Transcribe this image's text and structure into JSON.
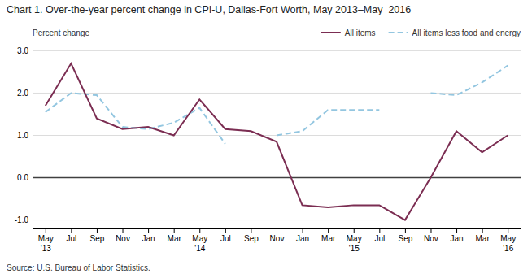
{
  "chart_data": {
    "type": "line",
    "title": "Chart 1. Over-the-year percent change in CPI-U, Dallas-Fort Worth, May 2013–May  2016",
    "ylabel": "Percent change",
    "annotations": [
      "Source: U.S. Bureau of Labor Statistics."
    ],
    "categories": [
      "May\n'13",
      "Jul",
      "Sep",
      "Nov",
      "Jan",
      "Mar",
      "May\n'14",
      "Jul",
      "Sep",
      "Nov",
      "Jan",
      "Mar",
      "May\n'15",
      "Jul",
      "Sep",
      "Nov",
      "Jan",
      "Mar",
      "May\n'16"
    ],
    "series": [
      {
        "name": "All items",
        "color": "#7B2D52",
        "line_style": "solid",
        "values": [
          1.7,
          2.7,
          1.4,
          1.15,
          1.2,
          1.0,
          1.85,
          1.15,
          1.1,
          0.85,
          -0.65,
          -0.7,
          -0.65,
          -0.65,
          -1.0,
          0.0,
          1.1,
          0.6,
          1.0
        ]
      },
      {
        "name": "All items less food and energy",
        "color": "#93C6E0",
        "line_style": "dashed",
        "values": [
          1.55,
          2.0,
          1.95,
          1.2,
          1.15,
          1.3,
          1.65,
          0.8,
          null,
          1.0,
          1.1,
          1.6,
          1.6,
          1.6,
          null,
          2.0,
          1.95,
          2.25,
          2.65
        ]
      }
    ],
    "ylim": [
      -1.2,
      3.2
    ],
    "yticks": [
      {
        "value": -1.0,
        "label": "-1.0"
      },
      {
        "value": 0.0,
        "label": "0.0"
      },
      {
        "value": 1.0,
        "label": "1.0"
      },
      {
        "value": 2.0,
        "label": "2.0"
      },
      {
        "value": 3.0,
        "label": "3.0"
      }
    ],
    "grid": true,
    "legend": "upper right"
  }
}
